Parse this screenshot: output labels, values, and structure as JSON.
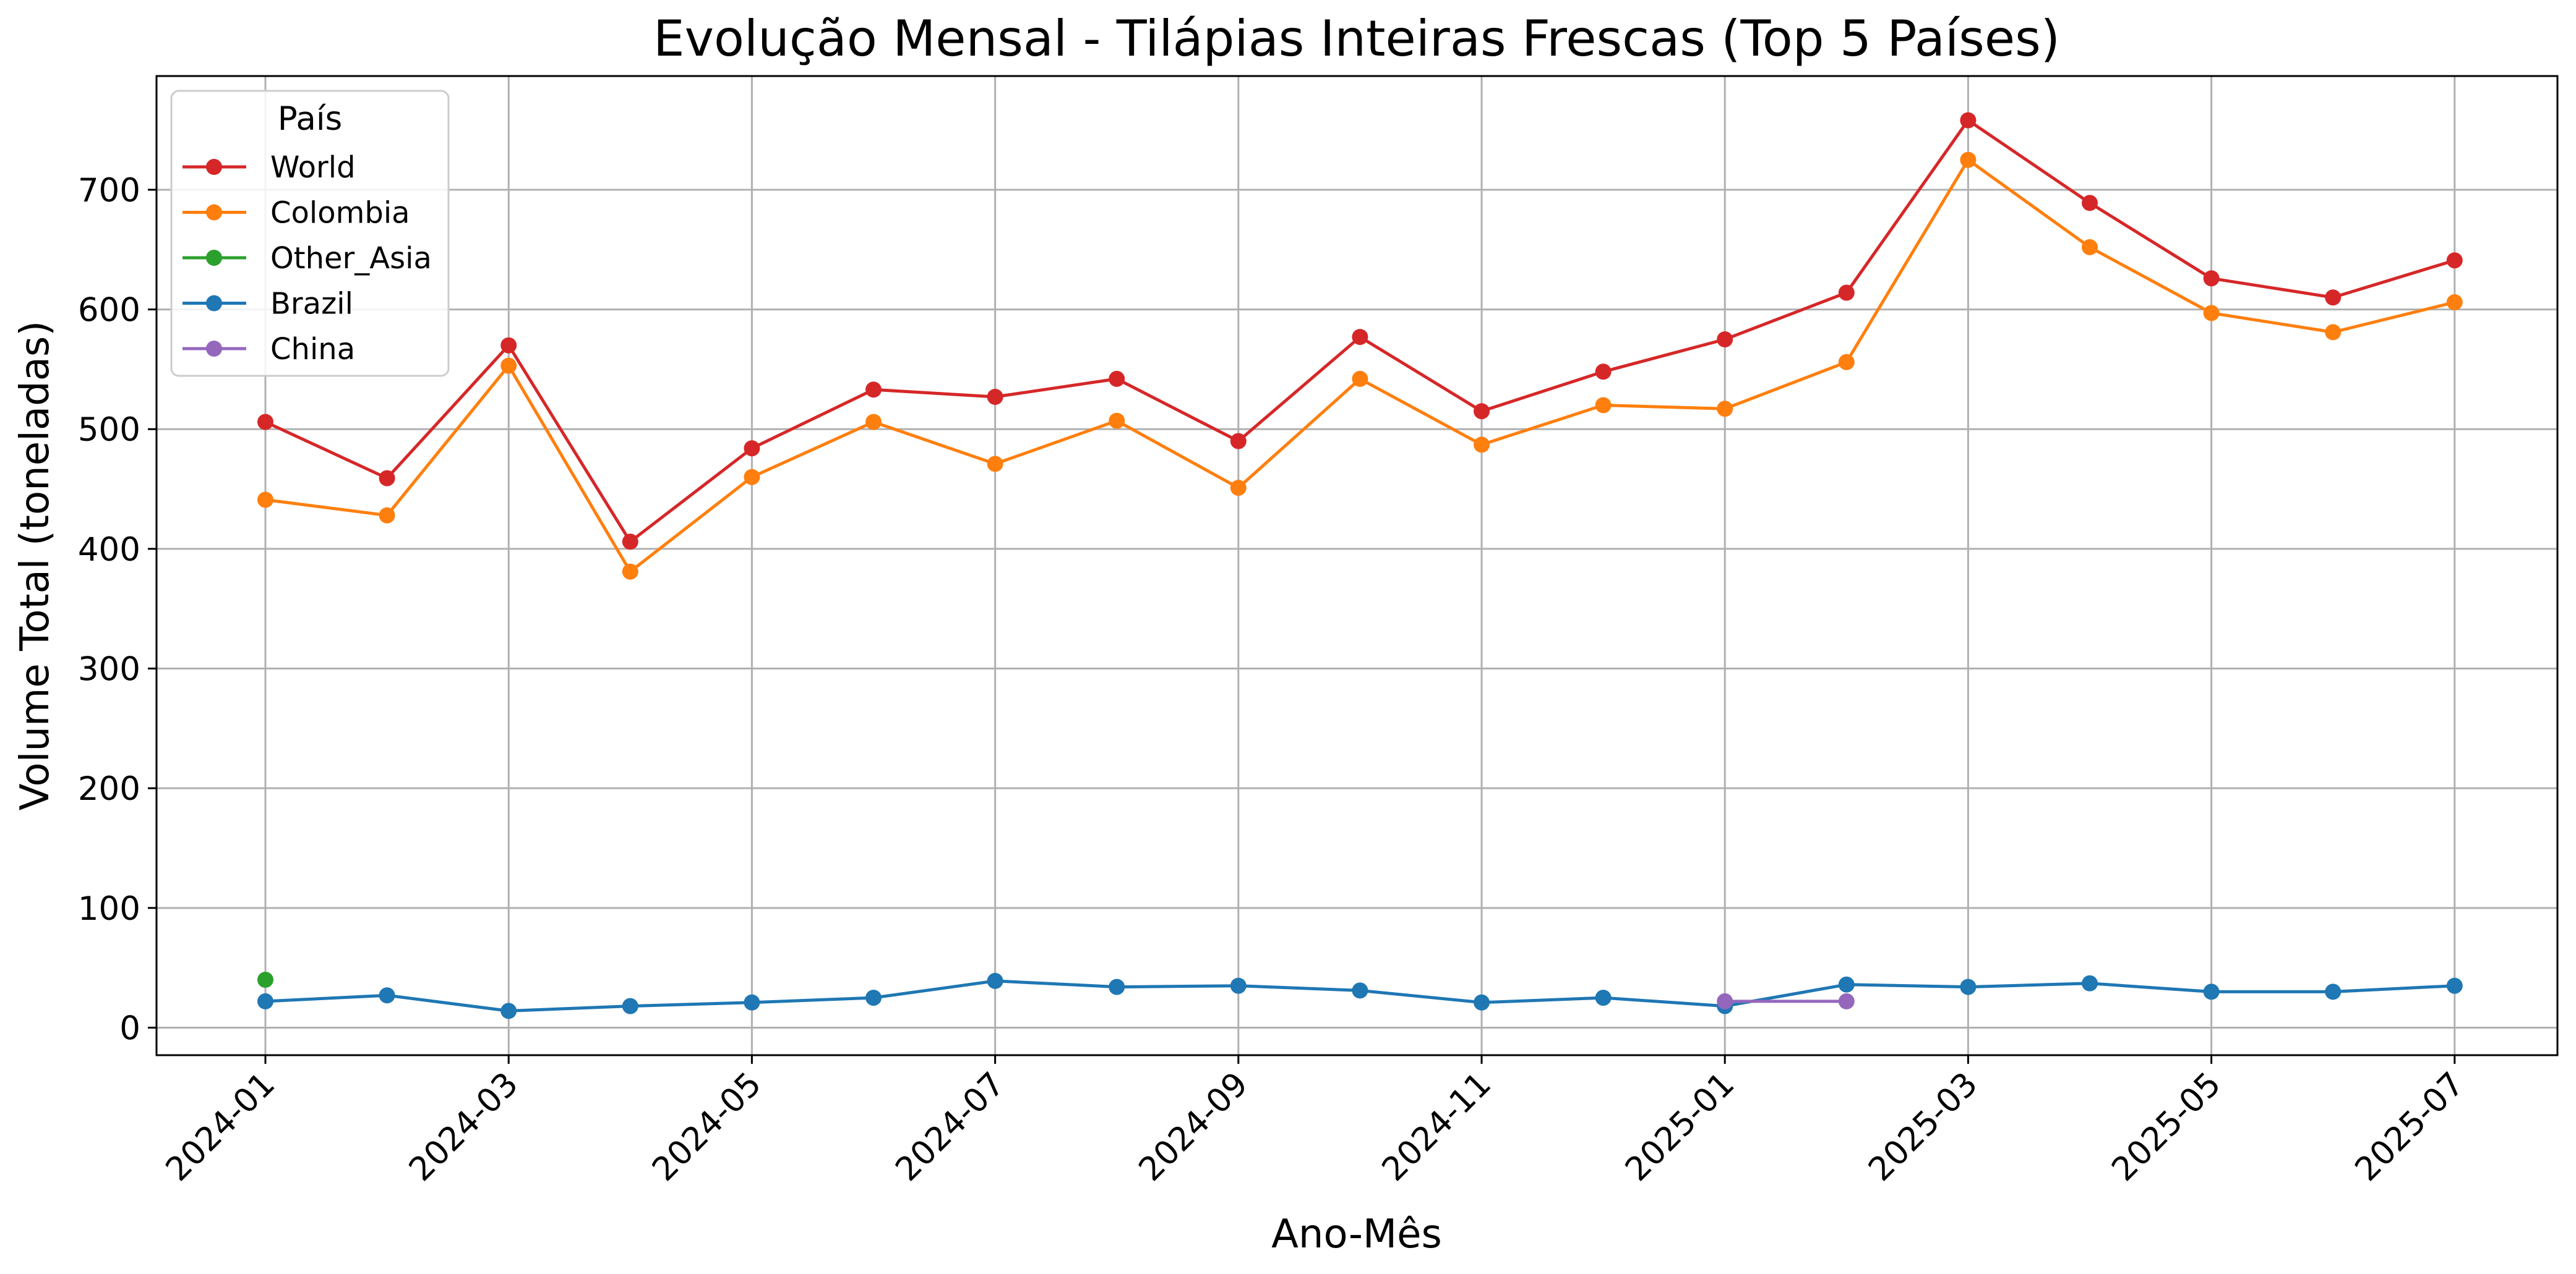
{
  "chart_data": {
    "type": "line",
    "title": "Evolução Mensal - Tilápias Inteiras Frescas (Top 5 Países)",
    "xlabel": "Ano-Mês",
    "ylabel": "Volume Total (toneladas)",
    "ylim": [
      -23,
      795
    ],
    "yticks": [
      "0",
      "100",
      "200",
      "300",
      "400",
      "500",
      "600",
      "700"
    ],
    "ytick_values": [
      0,
      100,
      200,
      300,
      400,
      500,
      600,
      700
    ],
    "x_all": [
      "2024-01",
      "2024-02",
      "2024-03",
      "2024-04",
      "2024-05",
      "2024-06",
      "2024-07",
      "2024-08",
      "2024-09",
      "2024-10",
      "2024-11",
      "2024-12",
      "2025-01",
      "2025-02",
      "2025-03",
      "2025-04",
      "2025-05",
      "2025-06",
      "2025-07"
    ],
    "xticks": [
      "2024-01",
      "2024-03",
      "2024-05",
      "2024-07",
      "2024-09",
      "2024-11",
      "2025-01",
      "2025-03",
      "2025-05",
      "2025-07"
    ],
    "grid": true,
    "legend_title": "País",
    "legend_position": "upper-left",
    "series": [
      {
        "name": "World",
        "color": "#d62728",
        "x": [
          "2024-01",
          "2024-02",
          "2024-03",
          "2024-04",
          "2024-05",
          "2024-06",
          "2024-07",
          "2024-08",
          "2024-09",
          "2024-10",
          "2024-11",
          "2024-12",
          "2025-01",
          "2025-02",
          "2025-03",
          "2025-04",
          "2025-05",
          "2025-06",
          "2025-07"
        ],
        "values": [
          506,
          459,
          570,
          406,
          484,
          533,
          527,
          542,
          490,
          577,
          515,
          548,
          575,
          614,
          758,
          689,
          626,
          610,
          641
        ]
      },
      {
        "name": "Colombia",
        "color": "#ff7f0e",
        "x": [
          "2024-01",
          "2024-02",
          "2024-03",
          "2024-04",
          "2024-05",
          "2024-06",
          "2024-07",
          "2024-08",
          "2024-09",
          "2024-10",
          "2024-11",
          "2024-12",
          "2025-01",
          "2025-02",
          "2025-03",
          "2025-04",
          "2025-05",
          "2025-06",
          "2025-07"
        ],
        "values": [
          441,
          428,
          553,
          381,
          460,
          506,
          471,
          507,
          451,
          542,
          487,
          520,
          517,
          556,
          725,
          652,
          597,
          581,
          606
        ]
      },
      {
        "name": "Other_Asia",
        "color": "#2ca02c",
        "x": [
          "2024-01"
        ],
        "values": [
          40
        ]
      },
      {
        "name": "Brazil",
        "color": "#1f77b4",
        "x": [
          "2024-01",
          "2024-02",
          "2024-03",
          "2024-04",
          "2024-05",
          "2024-06",
          "2024-07",
          "2024-08",
          "2024-09",
          "2024-10",
          "2024-11",
          "2024-12",
          "2025-01",
          "2025-02",
          "2025-03",
          "2025-04",
          "2025-05",
          "2025-06",
          "2025-07"
        ],
        "values": [
          22,
          27,
          14,
          18,
          21,
          25,
          39,
          34,
          35,
          31,
          21,
          25,
          18,
          36,
          34,
          37,
          30,
          30,
          35
        ]
      },
      {
        "name": "China",
        "color": "#9467bd",
        "x": [
          "2025-01",
          "2025-02"
        ],
        "values": [
          22,
          22
        ]
      }
    ]
  }
}
